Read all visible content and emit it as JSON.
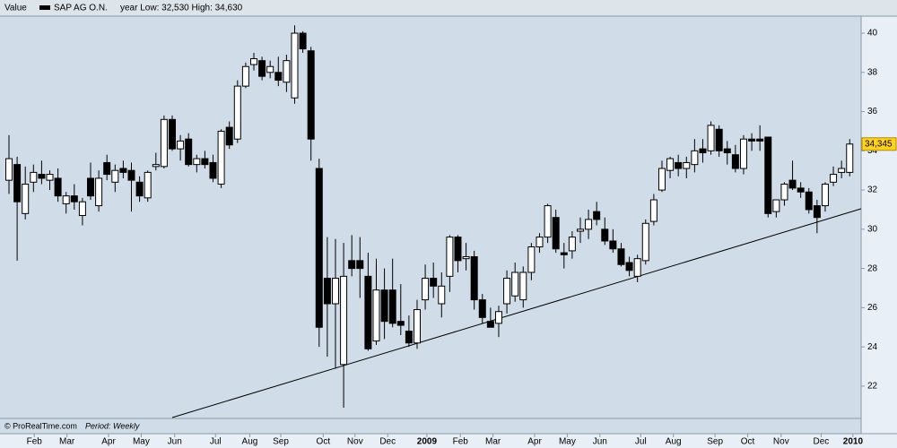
{
  "chart_data": {
    "type": "candlestick",
    "legend_label": "Value",
    "series_name": "SAP AG O.N.",
    "header_note": "year Low: 32,530 High: 34,630",
    "source": "© ProRealTime.com",
    "period": "Period: Weekly",
    "up_color": "#ffffff",
    "down_color": "#000000",
    "open": [
      32.5,
      33.3,
      30.8,
      32.4,
      32.8,
      32.5,
      32.6,
      31.3,
      31.7,
      30.7,
      32.6,
      31.2,
      33.4,
      32.4,
      33.1,
      33.0,
      32.4,
      31.6,
      33.2,
      33.2,
      35.6,
      34.1,
      34.6,
      33.3,
      33.6,
      33.4,
      32.3,
      35.2,
      34.6,
      37.3,
      38.4,
      38.6,
      38.0,
      38.0,
      37.5,
      36.7,
      40.0,
      39.1,
      33.1,
      27.5,
      26.2,
      23.1,
      28.4,
      28.4,
      27.6,
      24.3,
      26.9,
      26.9,
      25.3,
      24.8,
      24.2,
      26.4,
      27.5,
      26.2,
      27.6,
      29.6,
      28.5,
      28.6,
      26.4,
      25.3,
      25.2,
      26.2,
      26.6,
      26.4,
      27.8,
      29.1,
      29.6,
      30.6,
      28.8,
      28.9,
      29.9,
      30.0,
      30.9,
      30.0,
      29.4,
      29.0,
      28.3,
      27.6,
      28.4,
      30.4,
      32.0,
      33.0,
      33.4,
      33.1,
      33.3,
      34.1,
      34.0,
      35.1,
      34.1,
      33.8,
      33.1,
      34.6,
      34.6,
      34.7,
      30.9,
      31.5,
      32.5,
      32.1,
      31.9,
      31.2,
      31.2,
      32.4,
      32.9,
      32.9
    ],
    "high": [
      34.8,
      33.7,
      33.2,
      33.3,
      33.5,
      33.0,
      33.1,
      31.9,
      32.3,
      31.6,
      33.4,
      33.0,
      33.8,
      33.3,
      33.5,
      33.4,
      32.7,
      33.0,
      33.9,
      35.8,
      35.8,
      34.8,
      34.9,
      33.8,
      34.0,
      33.8,
      35.1,
      35.5,
      37.6,
      38.5,
      39.0,
      38.8,
      38.6,
      38.8,
      38.9,
      40.4,
      40.1,
      39.3,
      33.6,
      29.6,
      29.5,
      29.3,
      29.7,
      29.6,
      28.8,
      28.5,
      28.0,
      28.5,
      27.2,
      25.6,
      26.4,
      28.2,
      28.3,
      27.8,
      29.7,
      29.7,
      29.3,
      28.9,
      26.7,
      26.0,
      26.1,
      27.9,
      28.3,
      28.1,
      29.3,
      29.8,
      31.3,
      31.0,
      29.3,
      29.9,
      30.6,
      31.0,
      31.4,
      30.6,
      30.0,
      29.3,
      28.6,
      28.7,
      30.5,
      31.8,
      33.5,
      33.7,
      33.8,
      33.7,
      34.6,
      34.6,
      35.5,
      35.3,
      34.5,
      34.3,
      34.8,
      34.9,
      35.3,
      34.7,
      31.5,
      32.4,
      33.5,
      32.4,
      32.1,
      31.5,
      32.4,
      33.2,
      33.5,
      34.6
    ],
    "low": [
      31.8,
      28.4,
      30.5,
      31.9,
      32.3,
      32.0,
      31.4,
      30.8,
      31.0,
      30.2,
      31.5,
      30.9,
      32.5,
      31.9,
      32.6,
      30.9,
      31.4,
      31.4,
      33.0,
      33.1,
      34.0,
      33.5,
      33.2,
      32.9,
      33.1,
      32.4,
      32.1,
      34.1,
      34.4,
      37.2,
      38.1,
      37.6,
      37.7,
      37.3,
      37.0,
      36.4,
      39.0,
      33.5,
      24.0,
      23.5,
      22.9,
      20.9,
      27.6,
      26.5,
      23.8,
      24.1,
      24.4,
      25.0,
      24.6,
      24.0,
      23.9,
      25.9,
      26.5,
      25.5,
      26.8,
      27.8,
      27.9,
      25.9,
      25.2,
      25.0,
      24.5,
      25.7,
      26.3,
      26.0,
      27.4,
      28.8,
      29.3,
      28.8,
      28.0,
      28.5,
      29.3,
      29.5,
      30.2,
      29.2,
      28.8,
      28.1,
      27.6,
      27.3,
      28.2,
      30.2,
      31.9,
      32.6,
      32.7,
      32.6,
      32.9,
      33.4,
      33.8,
      33.7,
      33.3,
      32.9,
      32.8,
      34.0,
      34.0,
      30.6,
      30.6,
      31.2,
      32.0,
      31.6,
      30.8,
      29.8,
      30.9,
      32.2,
      32.6,
      32.7
    ],
    "close": [
      33.6,
      31.4,
      32.3,
      32.9,
      32.6,
      32.8,
      31.7,
      31.7,
      31.4,
      31.4,
      31.7,
      32.6,
      32.8,
      33.0,
      32.9,
      32.5,
      31.7,
      32.9,
      33.3,
      35.6,
      34.1,
      34.5,
      33.3,
      33.6,
      33.3,
      32.6,
      35.0,
      34.3,
      37.3,
      38.3,
      38.7,
      37.8,
      38.3,
      37.6,
      38.6,
      40.0,
      39.2,
      34.6,
      25.0,
      26.2,
      27.5,
      27.6,
      28.0,
      28.0,
      23.9,
      26.9,
      25.3,
      25.2,
      25.1,
      24.2,
      25.9,
      27.5,
      27.1,
      27.1,
      29.6,
      28.4,
      28.6,
      26.4,
      25.5,
      25.0,
      25.8,
      27.5,
      27.8,
      27.8,
      29.1,
      29.6,
      31.2,
      29.0,
      28.7,
      29.6,
      30.0,
      30.5,
      30.5,
      29.4,
      29.0,
      28.2,
      27.9,
      28.5,
      30.3,
      31.5,
      33.1,
      33.6,
      33.1,
      33.4,
      34.0,
      33.9,
      35.3,
      34.0,
      33.9,
      33.1,
      34.6,
      34.5,
      34.5,
      30.8,
      31.5,
      32.3,
      32.1,
      31.9,
      31.0,
      30.6,
      32.3,
      32.8,
      33.1,
      34.345
    ],
    "last_price": {
      "value": 34.345,
      "label": "34,345"
    },
    "ylim": [
      20.35,
      40.87
    ],
    "yticks": [
      22,
      24,
      26,
      28,
      30,
      32,
      34,
      36,
      38,
      40
    ],
    "xlim": [
      -1.1,
      104.4
    ],
    "xticks": [
      {
        "value": 3.1,
        "label": "Feb"
      },
      {
        "value": 7.1,
        "label": "Mar"
      },
      {
        "value": 12.2,
        "label": "Apr"
      },
      {
        "value": 16.2,
        "label": "May"
      },
      {
        "value": 20.3,
        "label": "Jun"
      },
      {
        "value": 25.3,
        "label": "Jul"
      },
      {
        "value": 29.5,
        "label": "Aug"
      },
      {
        "value": 33.3,
        "label": "Sep"
      },
      {
        "value": 38.5,
        "label": "Oct"
      },
      {
        "value": 42.4,
        "label": "Nov"
      },
      {
        "value": 46.4,
        "label": "Dec"
      },
      {
        "value": 51.2,
        "label": "2009"
      },
      {
        "value": 55.3,
        "label": "Feb"
      },
      {
        "value": 59.3,
        "label": "Mar"
      },
      {
        "value": 64.4,
        "label": "Apr"
      },
      {
        "value": 68.4,
        "label": "May"
      },
      {
        "value": 72.4,
        "label": "Jun"
      },
      {
        "value": 77.4,
        "label": "Jul"
      },
      {
        "value": 81.4,
        "label": "Aug"
      },
      {
        "value": 86.5,
        "label": "Sep"
      },
      {
        "value": 90.5,
        "label": "Oct"
      },
      {
        "value": 94.6,
        "label": "Nov"
      },
      {
        "value": 99.5,
        "label": "Dec"
      },
      {
        "value": 103.4,
        "label": "2010"
      }
    ]
  }
}
